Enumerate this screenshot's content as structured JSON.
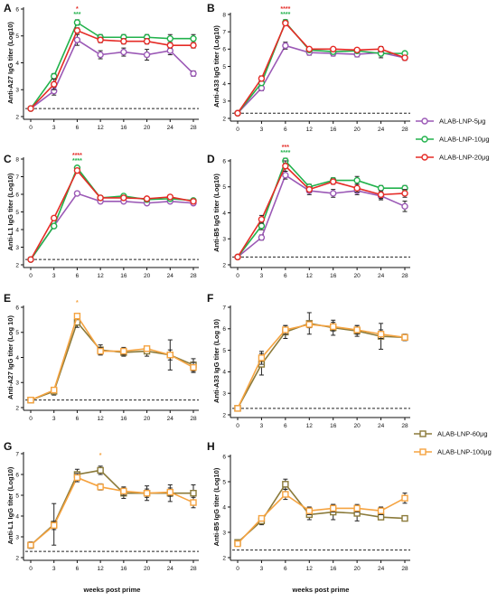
{
  "colors": {
    "purple": "#9b59b6",
    "green": "#22b24c",
    "red": "#e52b26",
    "olive": "#8b7a3a",
    "orange": "#f5a340",
    "star_red": "#e52b26",
    "star_green": "#22b24c",
    "star_orange": "#f5a340"
  },
  "x_ticks": [
    0,
    3,
    6,
    12,
    16,
    20,
    24,
    28
  ],
  "shared_xlabel": "weeks post prime",
  "legend_top": {
    "items": [
      {
        "label": "ALAB-LNP-5μg",
        "color_key": "purple"
      },
      {
        "label": "ALAB-LNP-10μg",
        "color_key": "green"
      },
      {
        "label": "ALAB-LNP-20μg",
        "color_key": "red"
      }
    ]
  },
  "legend_bottom": {
    "items": [
      {
        "label": "ALAB-LNP-60μg",
        "color_key": "olive"
      },
      {
        "label": "ALAB-LNP-100μg",
        "color_key": "orange"
      }
    ]
  },
  "chart_data": [
    {
      "panel": "A",
      "type": "line",
      "ylabel": "Anti-A27 IgG titer (Log10)",
      "ylim": [
        2,
        6
      ],
      "yticks": [
        2,
        3,
        4,
        5,
        6
      ],
      "dashed_line": 2.3,
      "marker": "circle",
      "x": [
        0,
        3,
        6,
        12,
        16,
        20,
        24,
        28
      ],
      "series": [
        {
          "name": "ALAB-LNP-5μg",
          "color_key": "purple",
          "values": [
            2.3,
            2.95,
            4.85,
            4.3,
            4.4,
            4.3,
            4.45,
            3.6
          ],
          "errors": [
            0.05,
            0.15,
            0.2,
            0.15,
            0.15,
            0.2,
            0.15,
            0.1
          ]
        },
        {
          "name": "ALAB-LNP-10μg",
          "color_key": "green",
          "values": [
            2.3,
            3.5,
            5.5,
            4.95,
            4.95,
            4.95,
            4.9,
            4.9
          ],
          "errors": [
            0.05,
            0.1,
            0.1,
            0.1,
            0.1,
            0.1,
            0.15,
            0.15
          ]
        },
        {
          "name": "ALAB-LNP-20μg",
          "color_key": "red",
          "values": [
            2.3,
            3.2,
            5.2,
            4.85,
            4.8,
            4.8,
            4.65,
            4.65
          ],
          "errors": [
            0.05,
            0.2,
            0.1,
            0.1,
            0.1,
            0.1,
            0.1,
            0.1
          ]
        }
      ],
      "annotations": [
        {
          "x": 6,
          "text": "*",
          "color_key": "star_red",
          "row": 0
        },
        {
          "x": 6,
          "text": "***",
          "color_key": "star_green",
          "row": 1
        }
      ]
    },
    {
      "panel": "B",
      "type": "line",
      "ylabel": "Anti-A33 IgG titer (Log10)",
      "ylim": [
        2,
        8
      ],
      "yticks": [
        2,
        3,
        4,
        5,
        6,
        7,
        8
      ],
      "dashed_line": 2.3,
      "marker": "circle",
      "x": [
        0,
        3,
        6,
        12,
        16,
        20,
        24,
        28
      ],
      "series": [
        {
          "name": "ALAB-LNP-5μg",
          "color_key": "purple",
          "values": [
            2.3,
            3.75,
            6.2,
            5.8,
            5.75,
            5.7,
            5.8,
            5.5
          ],
          "errors": [
            0.05,
            0.15,
            0.2,
            0.15,
            0.15,
            0.15,
            0.3,
            0.15
          ]
        },
        {
          "name": "ALAB-LNP-10μg",
          "color_key": "green",
          "values": [
            2.3,
            4.05,
            7.55,
            5.95,
            5.85,
            5.9,
            5.75,
            5.75
          ],
          "errors": [
            0.05,
            0.1,
            0.15,
            0.1,
            0.1,
            0.1,
            0.15,
            0.1
          ]
        },
        {
          "name": "ALAB-LNP-20μg",
          "color_key": "red",
          "values": [
            2.3,
            4.3,
            7.5,
            6.0,
            6.0,
            5.95,
            6.0,
            5.5
          ],
          "errors": [
            0.05,
            0.15,
            0.1,
            0.1,
            0.1,
            0.1,
            0.15,
            0.1
          ]
        }
      ],
      "annotations": [
        {
          "x": 6,
          "text": "****",
          "color_key": "star_red",
          "row": 0
        },
        {
          "x": 6,
          "text": "****",
          "color_key": "star_green",
          "row": 1
        }
      ]
    },
    {
      "panel": "C",
      "type": "line",
      "ylabel": "Anti-L1 IgG titer (Log10)",
      "ylim": [
        2,
        8
      ],
      "yticks": [
        2,
        3,
        4,
        5,
        6,
        7,
        8
      ],
      "dashed_line": 2.3,
      "marker": "circle",
      "x": [
        0,
        3,
        6,
        12,
        16,
        20,
        24,
        28
      ],
      "series": [
        {
          "name": "ALAB-LNP-5μg",
          "color_key": "purple",
          "values": [
            2.3,
            4.2,
            6.05,
            5.6,
            5.6,
            5.5,
            5.6,
            5.5
          ],
          "errors": [
            0.05,
            0.1,
            0.1,
            0.1,
            0.1,
            0.1,
            0.1,
            0.1
          ]
        },
        {
          "name": "ALAB-LNP-10μg",
          "color_key": "green",
          "values": [
            2.3,
            4.2,
            7.5,
            5.8,
            5.9,
            5.7,
            5.75,
            5.65
          ],
          "errors": [
            0.05,
            0.1,
            0.1,
            0.1,
            0.1,
            0.1,
            0.1,
            0.1
          ]
        },
        {
          "name": "ALAB-LNP-20μg",
          "color_key": "red",
          "values": [
            2.3,
            4.65,
            7.35,
            5.8,
            5.8,
            5.75,
            5.85,
            5.6
          ],
          "errors": [
            0.05,
            0.1,
            0.1,
            0.1,
            0.1,
            0.1,
            0.1,
            0.1
          ]
        }
      ],
      "annotations": [
        {
          "x": 6,
          "text": "****",
          "color_key": "star_red",
          "row": 0
        },
        {
          "x": 6,
          "text": "****",
          "color_key": "star_green",
          "row": 1
        }
      ]
    },
    {
      "panel": "D",
      "type": "line",
      "ylabel": "Anti-B5 IgG titer (Log10)",
      "ylim": [
        2,
        6
      ],
      "yticks": [
        2,
        3,
        4,
        5,
        6
      ],
      "dashed_line": 2.3,
      "marker": "circle",
      "x": [
        0,
        3,
        6,
        12,
        16,
        20,
        24,
        28
      ],
      "series": [
        {
          "name": "ALAB-LNP-5μg",
          "color_key": "purple",
          "values": [
            2.3,
            3.05,
            5.45,
            4.85,
            4.75,
            4.85,
            4.65,
            4.25
          ],
          "errors": [
            0.05,
            0.1,
            0.15,
            0.15,
            0.15,
            0.15,
            0.15,
            0.2
          ]
        },
        {
          "name": "ALAB-LNP-10μg",
          "color_key": "green",
          "values": [
            2.3,
            3.5,
            6.0,
            5.0,
            5.25,
            5.25,
            4.95,
            4.95
          ],
          "errors": [
            0.05,
            0.15,
            0.1,
            0.1,
            0.1,
            0.15,
            0.1,
            0.1
          ]
        },
        {
          "name": "ALAB-LNP-20μg",
          "color_key": "red",
          "values": [
            2.3,
            3.75,
            5.8,
            4.9,
            5.2,
            4.95,
            4.7,
            4.75
          ],
          "errors": [
            0.05,
            0.15,
            0.2,
            0.1,
            0.1,
            0.15,
            0.15,
            0.15
          ]
        }
      ],
      "annotations": [
        {
          "x": 6,
          "text": "***",
          "color_key": "star_red",
          "row": 0
        },
        {
          "x": 6,
          "text": "****",
          "color_key": "star_green",
          "row": 1
        }
      ]
    },
    {
      "panel": "E",
      "type": "line",
      "ylabel": "Anti-A27 IgG titer (Log 10)",
      "ylim": [
        2,
        6
      ],
      "yticks": [
        2,
        3,
        4,
        5,
        6
      ],
      "dashed_line": 2.3,
      "marker": "square",
      "x": [
        0,
        3,
        6,
        12,
        16,
        20,
        24,
        28
      ],
      "series": [
        {
          "name": "ALAB-LNP-60μg",
          "color_key": "olive",
          "values": [
            2.3,
            2.65,
            5.4,
            4.3,
            4.2,
            4.25,
            4.1,
            3.7
          ],
          "errors": [
            0.05,
            0.15,
            0.2,
            0.2,
            0.15,
            0.2,
            0.6,
            0.25
          ]
        },
        {
          "name": "ALAB-LNP-100μg",
          "color_key": "orange",
          "values": [
            2.3,
            2.7,
            5.65,
            4.25,
            4.25,
            4.35,
            4.1,
            3.6
          ],
          "errors": [
            0.05,
            0.1,
            0.1,
            0.15,
            0.15,
            0.1,
            0.2,
            0.2
          ]
        }
      ],
      "annotations": [
        {
          "x": 6,
          "text": "*",
          "color_key": "star_orange",
          "row": 0
        }
      ]
    },
    {
      "panel": "F",
      "type": "line",
      "ylabel": "Anti-A33 IgG titer (Log 10)",
      "ylim": [
        2,
        7
      ],
      "yticks": [
        2,
        3,
        4,
        5,
        6,
        7
      ],
      "dashed_line": 2.3,
      "marker": "square",
      "x": [
        0,
        3,
        6,
        12,
        16,
        20,
        24,
        28
      ],
      "series": [
        {
          "name": "ALAB-LNP-60μg",
          "color_key": "olive",
          "values": [
            2.3,
            4.35,
            5.85,
            6.25,
            6.05,
            5.9,
            5.65,
            5.6
          ],
          "errors": [
            0.05,
            0.5,
            0.3,
            0.5,
            0.35,
            0.25,
            0.6,
            0.15
          ]
        },
        {
          "name": "ALAB-LNP-100μg",
          "color_key": "orange",
          "values": [
            2.3,
            4.65,
            5.95,
            6.2,
            6.1,
            5.95,
            5.75,
            5.6
          ],
          "errors": [
            0.05,
            0.3,
            0.2,
            0.15,
            0.2,
            0.2,
            0.2,
            0.1
          ]
        }
      ],
      "annotations": []
    },
    {
      "panel": "G",
      "type": "line",
      "ylabel": "Anti-L1 IgG titer (Log10)",
      "ylim": [
        2,
        7
      ],
      "yticks": [
        2,
        3,
        4,
        5,
        6,
        7
      ],
      "dashed_line": 2.3,
      "marker": "square",
      "x": [
        0,
        3,
        6,
        12,
        16,
        20,
        24,
        28
      ],
      "series": [
        {
          "name": "ALAB-LNP-60μg",
          "color_key": "olive",
          "values": [
            2.6,
            3.6,
            6.0,
            6.2,
            5.1,
            5.1,
            5.1,
            5.1
          ],
          "errors": [
            0.15,
            1.0,
            0.25,
            0.2,
            0.25,
            0.35,
            0.4,
            0.4
          ]
        },
        {
          "name": "ALAB-LNP-100μg",
          "color_key": "orange",
          "values": [
            2.6,
            3.55,
            5.85,
            5.4,
            5.2,
            5.1,
            5.15,
            4.65
          ],
          "errors": [
            0.15,
            0.2,
            0.2,
            0.15,
            0.2,
            0.2,
            0.2,
            0.25
          ]
        }
      ],
      "annotations": [
        {
          "x": 12,
          "text": "*",
          "color_key": "star_orange",
          "row": 0
        }
      ]
    },
    {
      "panel": "H",
      "type": "line",
      "ylabel": "Anti-B5 IgG titer (Log10)",
      "ylim": [
        2,
        6
      ],
      "yticks": [
        2,
        3,
        4,
        5,
        6
      ],
      "dashed_line": 2.3,
      "marker": "square",
      "x": [
        0,
        3,
        6,
        12,
        16,
        20,
        24,
        28
      ],
      "series": [
        {
          "name": "ALAB-LNP-60μg",
          "color_key": "olive",
          "values": [
            2.6,
            3.45,
            4.9,
            3.7,
            3.8,
            3.75,
            3.6,
            3.55
          ],
          "errors": [
            0.1,
            0.15,
            0.2,
            0.2,
            0.3,
            0.3,
            0.1,
            0.1
          ]
        },
        {
          "name": "ALAB-LNP-100μg",
          "color_key": "orange",
          "values": [
            2.55,
            3.55,
            4.5,
            3.85,
            3.95,
            3.95,
            3.85,
            4.35
          ],
          "errors": [
            0.1,
            0.1,
            0.2,
            0.15,
            0.15,
            0.15,
            0.15,
            0.2
          ]
        }
      ],
      "annotations": []
    }
  ]
}
